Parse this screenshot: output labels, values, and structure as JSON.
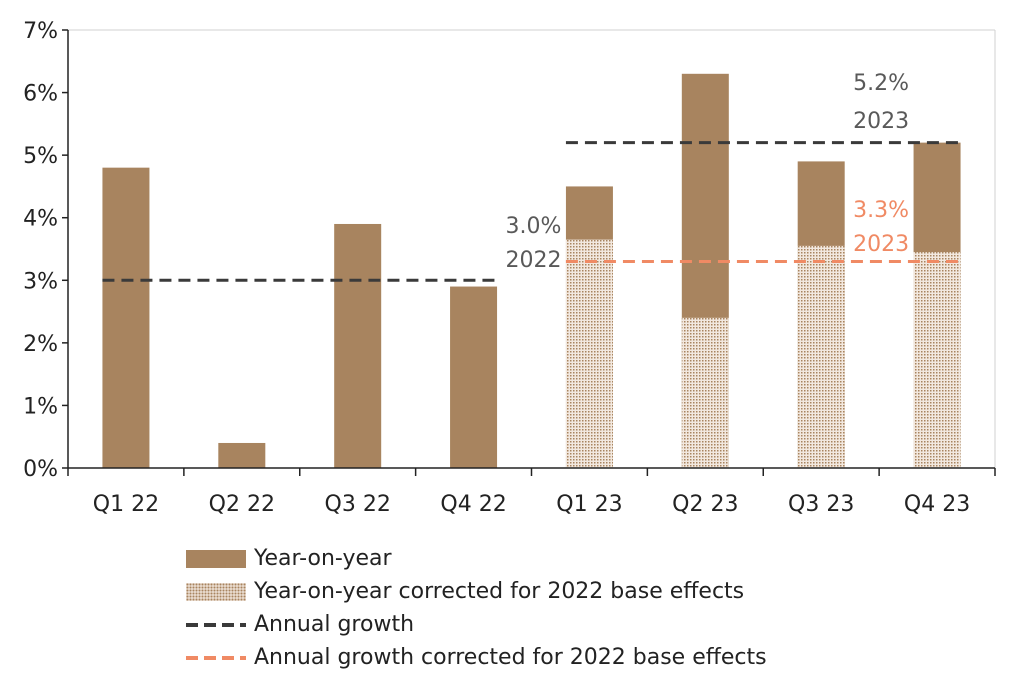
{
  "chart_data": {
    "type": "bar",
    "categories": [
      "Q1 22",
      "Q2 22",
      "Q3 22",
      "Q4 22",
      "Q1 23",
      "Q2 23",
      "Q3 23",
      "Q4 23"
    ],
    "ylim": [
      0,
      7
    ],
    "yticks": [
      "0%",
      "1%",
      "2%",
      "3%",
      "4%",
      "5%",
      "6%",
      "7%"
    ],
    "grid": false,
    "legend_position": "bottom",
    "colors": {
      "yoy": "#a8845f",
      "annual": "#3a3a3a",
      "corrected_annual": "#f08a64",
      "annotation_dark": "#595959",
      "annotation_orange": "#f08a64"
    },
    "series": [
      {
        "name": "Year-on-year",
        "values": [
          4.8,
          0.4,
          3.9,
          2.9,
          4.5,
          6.3,
          4.9,
          5.2
        ]
      },
      {
        "name": "Year-on-year corrected for 2022 base effects",
        "values": [
          null,
          null,
          null,
          null,
          3.65,
          2.4,
          3.55,
          3.45
        ]
      }
    ],
    "lines": [
      {
        "name": "Annual growth",
        "from": "Q1 22",
        "to": "Q4 22",
        "value": 3.0
      },
      {
        "name": "Annual growth",
        "from": "Q1 23",
        "to": "Q4 23",
        "value": 5.2
      },
      {
        "name": "Annual growth corrected for 2022 base effects",
        "from": "Q1 23",
        "to": "Q4 23",
        "value": 3.3
      }
    ],
    "annotations": [
      {
        "text": [
          "3.0%",
          "2022"
        ],
        "color": "annotation_dark",
        "category": "Q4 22"
      },
      {
        "text": [
          "5.2%",
          "2023"
        ],
        "color": "annotation_dark",
        "category": "Q3 23"
      },
      {
        "text": [
          "3.3%",
          "2023"
        ],
        "color": "annotation_orange",
        "category": "Q3 23"
      }
    ]
  },
  "legend": {
    "items": [
      {
        "label": "Year-on-year",
        "swatch": "solid"
      },
      {
        "label": "Year-on-year corrected for 2022 base effects",
        "swatch": "dotted"
      },
      {
        "label": "Annual growth",
        "swatch": "dash-dark"
      },
      {
        "label": "Annual growth corrected for 2022 base effects",
        "swatch": "dash-orange"
      }
    ]
  }
}
